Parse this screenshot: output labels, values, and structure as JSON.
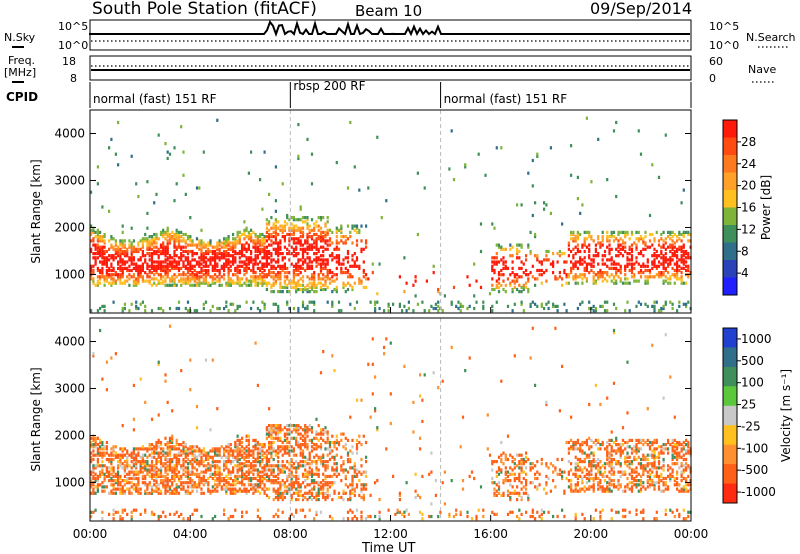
{
  "header": {
    "title": "South Pole Station (fitACF)",
    "beam": "Beam 10",
    "date": "09/Sep/2014"
  },
  "side_labels": {
    "nsky": "N.Sky",
    "nsearch": "N.Search",
    "freq_line1": "Freq.",
    "freq_line2": "[MHz]",
    "nave": "Nave",
    "cpid": "CPID"
  },
  "status_panels": {
    "noise": {
      "left_ticks": [
        "10^5",
        "10^0"
      ],
      "right_ticks": [
        "10^5",
        "10^0"
      ]
    },
    "freq": {
      "left_ticks": [
        "18",
        "8"
      ],
      "right_ticks": [
        "60",
        "0"
      ]
    }
  },
  "cpid_segments": [
    {
      "label": "normal (fast) 151 RF",
      "start": 0,
      "end": 8
    },
    {
      "label": "rbsp 200 RF",
      "start": 8,
      "end": 14
    },
    {
      "label": "normal (fast) 151 RF",
      "start": 14,
      "end": 24
    }
  ],
  "chart_data": [
    {
      "type": "heatmap",
      "title": "Power",
      "ylabel": "Slant Range [km]",
      "xlabel": "",
      "xlim": [
        0,
        24
      ],
      "ylim": [
        180,
        4500
      ],
      "yticks": [
        "1000",
        "2000",
        "3000",
        "4000"
      ],
      "colorbar": {
        "label": "Power [dB]",
        "ticks": [
          "4",
          "8",
          "12",
          "16",
          "20",
          "24",
          "28"
        ],
        "colors": [
          "#1f1fff",
          "#2b43b8",
          "#2f6f8a",
          "#3f8f5a",
          "#7fb43a",
          "#ffc020",
          "#ffa028",
          "#ff7a1e",
          "#ff4a12",
          "#ff1a0a"
        ]
      }
    },
    {
      "type": "heatmap",
      "title": "Velocity",
      "ylabel": "Slant Range [km]",
      "xlabel": "Time UT",
      "xlim": [
        0,
        24
      ],
      "ylim": [
        180,
        4500
      ],
      "xticks": [
        "00:00",
        "04:00",
        "08:00",
        "12:00",
        "16:00",
        "20:00",
        "00:00"
      ],
      "yticks": [
        "1000",
        "2000",
        "3000",
        "4000"
      ],
      "colorbar": {
        "label": "Velocity [m s⁻¹]",
        "ticks": [
          "1000",
          "500",
          "100",
          "25",
          "-25",
          "-100",
          "-500",
          "-1000"
        ],
        "colors": [
          "#2040d0",
          "#2f6f8a",
          "#3f8f5a",
          "#5ac83a",
          "#c8c8c8",
          "#ffc020",
          "#ff9030",
          "#ff6018",
          "#ff2a10"
        ]
      }
    }
  ]
}
